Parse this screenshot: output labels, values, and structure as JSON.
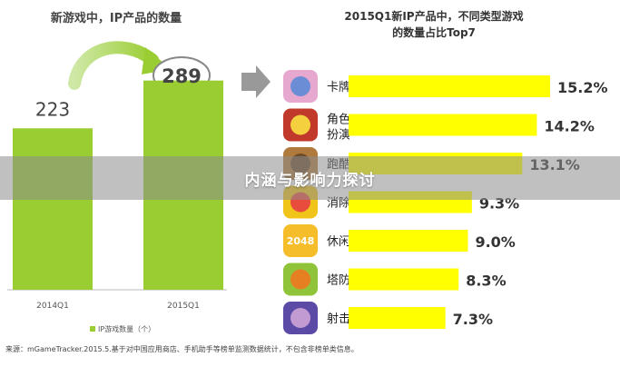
{
  "banner_text": "内涵与影响力探讨",
  "source_note": "来源：mGameTracker.2015.5.基于对中国应用商店、手机助手等榜单监测数据统计，不包含非榜单类信息。",
  "chart_data": [
    {
      "type": "bar",
      "title": "新游戏中，IP产品的数量",
      "categories": [
        "2014Q1",
        "2015Q1"
      ],
      "values": [
        223,
        289
      ],
      "ylim": [
        0,
        340
      ],
      "bar_color": "#9acd32",
      "highlight": "2015Q1",
      "legend": [
        "IP游戏数量（个）"
      ],
      "legend_position": "bottom"
    },
    {
      "type": "bar",
      "orientation": "horizontal",
      "title": "2015Q1新IP产品中，不同类型游戏",
      "subtitle": "的数量占比Top7",
      "categories": [
        "卡牌",
        "角色扮演",
        "跑酷",
        "消除",
        "休闲",
        "塔防",
        "射击"
      ],
      "values": [
        15.2,
        14.2,
        13.1,
        9.3,
        9.0,
        8.3,
        7.3
      ],
      "value_labels": [
        "15.2%",
        "14.2%",
        "13.1%",
        "9.3%",
        "9.0%",
        "8.3%",
        "7.3%"
      ],
      "icon_text": [
        "",
        "",
        "",
        "",
        "2048",
        "",
        ""
      ],
      "xlim": [
        0,
        16
      ],
      "bar_color": "#ffff00"
    }
  ]
}
